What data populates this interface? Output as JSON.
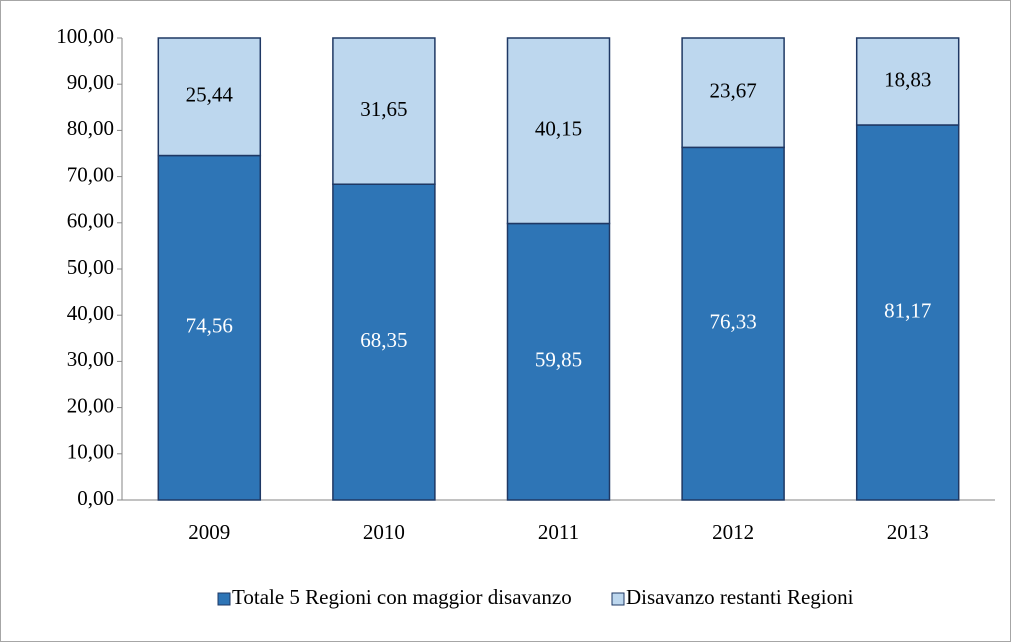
{
  "chart_data": {
    "type": "bar",
    "stacked": true,
    "categories": [
      "2009",
      "2010",
      "2011",
      "2012",
      "2013"
    ],
    "series": [
      {
        "name": "Totale 5 Regioni con maggior disavanzo",
        "color": "#2e75b6",
        "label_color": "#ffffff",
        "values": [
          74.56,
          68.35,
          59.85,
          76.33,
          81.17
        ],
        "value_labels": [
          "74,56",
          "68,35",
          "59,85",
          "76,33",
          "81,17"
        ]
      },
      {
        "name": "Disavanzo restanti Regioni",
        "color": "#bdd7ee",
        "label_color": "#000000",
        "values": [
          25.44,
          31.65,
          40.15,
          23.67,
          18.83
        ],
        "value_labels": [
          "25,44",
          "31,65",
          "40,15",
          "23,67",
          "18,83"
        ]
      }
    ],
    "ylim": [
      0,
      100
    ],
    "yticks": [
      {
        "value": 0,
        "label": "0,00"
      },
      {
        "value": 10,
        "label": "10,00"
      },
      {
        "value": 20,
        "label": "20,00"
      },
      {
        "value": 30,
        "label": "30,00"
      },
      {
        "value": 40,
        "label": "40,00"
      },
      {
        "value": 50,
        "label": "50,00"
      },
      {
        "value": 60,
        "label": "60,00"
      },
      {
        "value": 70,
        "label": "70,00"
      },
      {
        "value": 80,
        "label": "80,00"
      },
      {
        "value": 90,
        "label": "90,00"
      },
      {
        "value": 100,
        "label": "100,00"
      }
    ],
    "grid": false,
    "legend": "bottom"
  }
}
